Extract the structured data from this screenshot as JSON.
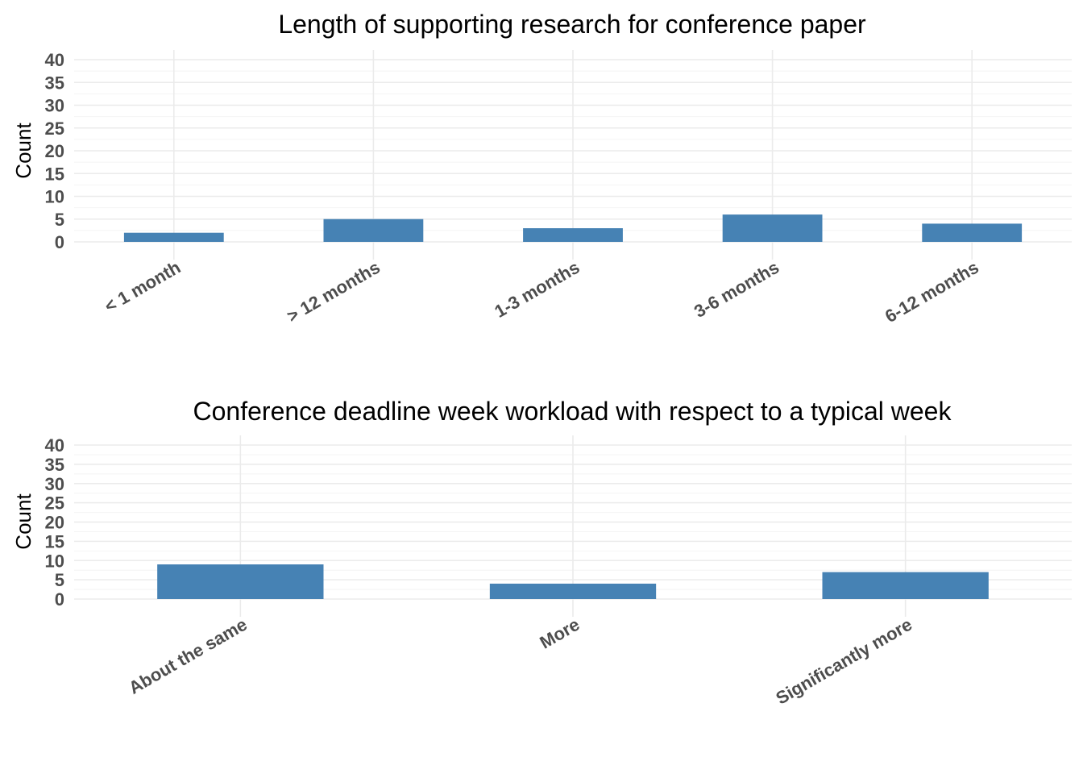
{
  "chart_data": [
    {
      "type": "bar",
      "title": "Length of supporting research for conference paper",
      "xlabel": "",
      "ylabel": "Count",
      "categories": [
        "< 1 month",
        "> 12 months",
        "1-3 months",
        "3-6 months",
        "6-12 months"
      ],
      "values": [
        2,
        5,
        3,
        6,
        4
      ],
      "ylim": [
        0,
        40
      ],
      "yticks": [
        0,
        5,
        10,
        15,
        20,
        25,
        30,
        35,
        40
      ],
      "grid": true,
      "color": "#4682b4"
    },
    {
      "type": "bar",
      "title": "Conference deadline week workload with respect to a typical week",
      "xlabel": "",
      "ylabel": "Count",
      "categories": [
        "About the same",
        "More",
        "Significantly more"
      ],
      "values": [
        9,
        4,
        7
      ],
      "ylim": [
        0,
        40
      ],
      "yticks": [
        0,
        5,
        10,
        15,
        20,
        25,
        30,
        35,
        40
      ],
      "grid": true,
      "color": "#4682b4"
    }
  ]
}
